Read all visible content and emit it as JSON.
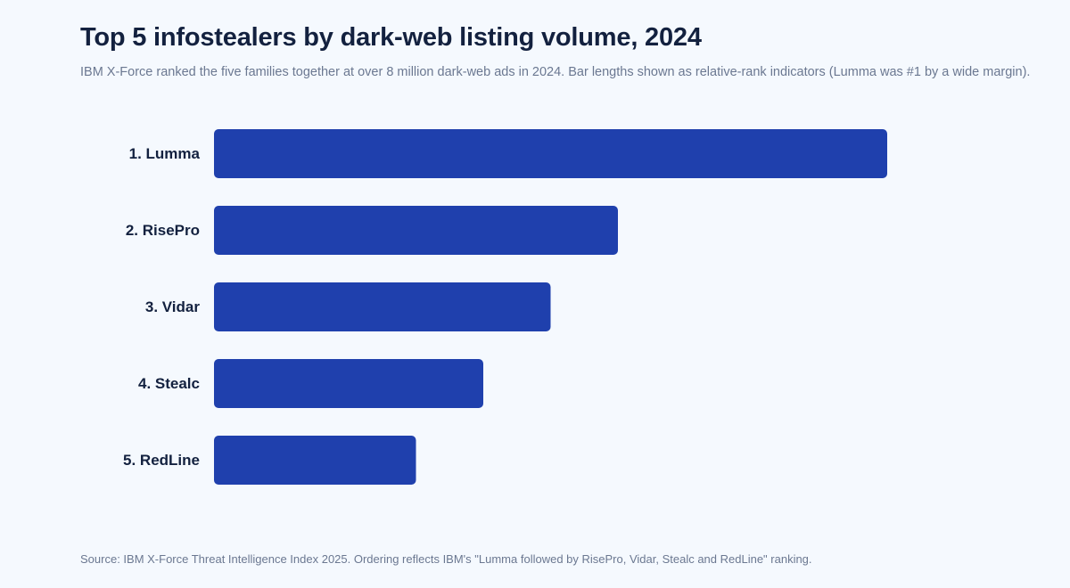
{
  "chart_data": {
    "type": "bar",
    "orientation": "horizontal",
    "title": "Top 5 infostealers by dark-web listing volume, 2024",
    "subtitle": "IBM X-Force ranked the five families together at over 8 million dark-web ads in 2024. Bar lengths shown as relative-rank indicators (Lumma was #1 by a wide margin).",
    "categories": [
      "1. Lumma",
      "2. RisePro",
      "3. Vidar",
      "4. Stealc",
      "5. RedLine"
    ],
    "values": [
      100,
      60,
      50,
      40,
      30
    ],
    "xlim": [
      0,
      100
    ],
    "xlabel": "",
    "ylabel": "",
    "grid": false,
    "bar_color": "#1f40ad",
    "source": "Source: IBM X-Force Threat Intelligence Index 2025. Ordering reflects IBM's \"Lumma followed by RisePro, Vidar, Stealc and RedLine\" ranking."
  }
}
